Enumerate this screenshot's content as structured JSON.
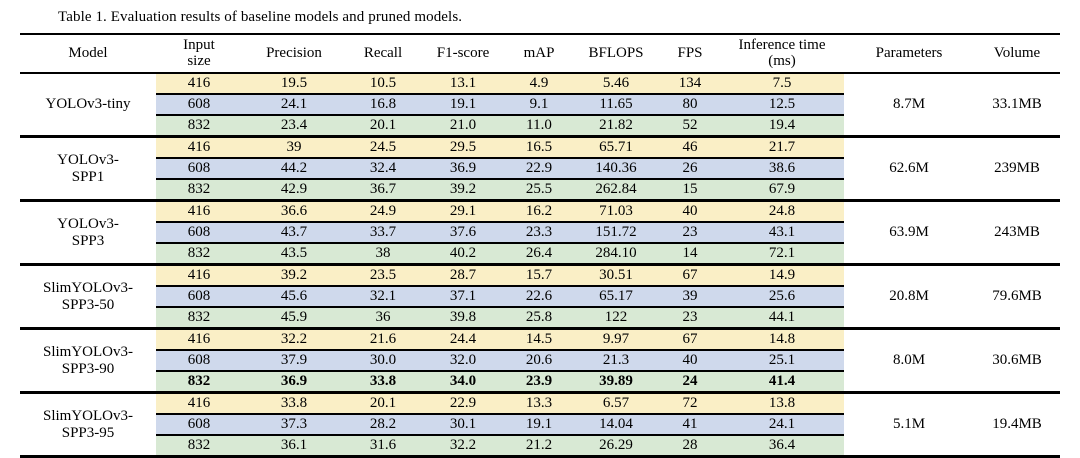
{
  "title": "Table 1. Evaluation results of baseline models and pruned models.",
  "table": {
    "row_colors": {
      "416": "#FAEFC6",
      "608": "#CFD9EC",
      "832": "#D8E9D4"
    },
    "line_color": "#000000",
    "columns": [
      {
        "label": "Model"
      },
      {
        "label": "Input",
        "label2": "size"
      },
      {
        "label": "Precision"
      },
      {
        "label": "Recall"
      },
      {
        "label": "F1-score"
      },
      {
        "label": "mAP"
      },
      {
        "label": "BFLOPS"
      },
      {
        "label": "FPS"
      },
      {
        "label": "Inference time",
        "label2": "(ms)"
      },
      {
        "label": "Parameters"
      },
      {
        "label": "Volume"
      }
    ],
    "groups": [
      {
        "model_lines": [
          "YOLOv3-tiny"
        ],
        "parameters": "8.7M",
        "volume": "33.1MB",
        "rows": [
          {
            "input_size": "416",
            "precision": "19.5",
            "recall": "10.5",
            "f1_score": "13.1",
            "map": "4.9",
            "bflops": "5.46",
            "fps": "134",
            "inference_time_ms": "7.5",
            "bold": false
          },
          {
            "input_size": "608",
            "precision": "24.1",
            "recall": "16.8",
            "f1_score": "19.1",
            "map": "9.1",
            "bflops": "11.65",
            "fps": "80",
            "inference_time_ms": "12.5",
            "bold": false
          },
          {
            "input_size": "832",
            "precision": "23.4",
            "recall": "20.1",
            "f1_score": "21.0",
            "map": "11.0",
            "bflops": "21.82",
            "fps": "52",
            "inference_time_ms": "19.4",
            "bold": false
          }
        ]
      },
      {
        "model_lines": [
          "YOLOv3-",
          "SPP1"
        ],
        "parameters": "62.6M",
        "volume": "239MB",
        "rows": [
          {
            "input_size": "416",
            "precision": "39",
            "recall": "24.5",
            "f1_score": "29.5",
            "map": "16.5",
            "bflops": "65.71",
            "fps": "46",
            "inference_time_ms": "21.7",
            "bold": false
          },
          {
            "input_size": "608",
            "precision": "44.2",
            "recall": "32.4",
            "f1_score": "36.9",
            "map": "22.9",
            "bflops": "140.36",
            "fps": "26",
            "inference_time_ms": "38.6",
            "bold": false
          },
          {
            "input_size": "832",
            "precision": "42.9",
            "recall": "36.7",
            "f1_score": "39.2",
            "map": "25.5",
            "bflops": "262.84",
            "fps": "15",
            "inference_time_ms": "67.9",
            "bold": false
          }
        ]
      },
      {
        "model_lines": [
          "YOLOv3-",
          "SPP3"
        ],
        "parameters": "63.9M",
        "volume": "243MB",
        "rows": [
          {
            "input_size": "416",
            "precision": "36.6",
            "recall": "24.9",
            "f1_score": "29.1",
            "map": "16.2",
            "bflops": "71.03",
            "fps": "40",
            "inference_time_ms": "24.8",
            "bold": false
          },
          {
            "input_size": "608",
            "precision": "43.7",
            "recall": "33.7",
            "f1_score": "37.6",
            "map": "23.3",
            "bflops": "151.72",
            "fps": "23",
            "inference_time_ms": "43.1",
            "bold": false
          },
          {
            "input_size": "832",
            "precision": "43.5",
            "recall": "38",
            "f1_score": "40.2",
            "map": "26.4",
            "bflops": "284.10",
            "fps": "14",
            "inference_time_ms": "72.1",
            "bold": false
          }
        ]
      },
      {
        "model_lines": [
          "SlimYOLOv3-",
          "SPP3-50"
        ],
        "parameters": "20.8M",
        "volume": "79.6MB",
        "rows": [
          {
            "input_size": "416",
            "precision": "39.2",
            "recall": "23.5",
            "f1_score": "28.7",
            "map": "15.7",
            "bflops": "30.51",
            "fps": "67",
            "inference_time_ms": "14.9",
            "bold": false
          },
          {
            "input_size": "608",
            "precision": "45.6",
            "recall": "32.1",
            "f1_score": "37.1",
            "map": "22.6",
            "bflops": "65.17",
            "fps": "39",
            "inference_time_ms": "25.6",
            "bold": false
          },
          {
            "input_size": "832",
            "precision": "45.9",
            "recall": "36",
            "f1_score": "39.8",
            "map": "25.8",
            "bflops": "122",
            "fps": "23",
            "inference_time_ms": "44.1",
            "bold": false
          }
        ]
      },
      {
        "model_lines": [
          "SlimYOLOv3-",
          "SPP3-90"
        ],
        "parameters": "8.0M",
        "volume": "30.6MB",
        "rows": [
          {
            "input_size": "416",
            "precision": "32.2",
            "recall": "21.6",
            "f1_score": "24.4",
            "map": "14.5",
            "bflops": "9.97",
            "fps": "67",
            "inference_time_ms": "14.8",
            "bold": false
          },
          {
            "input_size": "608",
            "precision": "37.9",
            "recall": "30.0",
            "f1_score": "32.0",
            "map": "20.6",
            "bflops": "21.3",
            "fps": "40",
            "inference_time_ms": "25.1",
            "bold": false
          },
          {
            "input_size": "832",
            "precision": "36.9",
            "recall": "33.8",
            "f1_score": "34.0",
            "map": "23.9",
            "bflops": "39.89",
            "fps": "24",
            "inference_time_ms": "41.4",
            "bold": true
          }
        ]
      },
      {
        "model_lines": [
          "SlimYOLOv3-",
          "SPP3-95"
        ],
        "parameters": "5.1M",
        "volume": "19.4MB",
        "rows": [
          {
            "input_size": "416",
            "precision": "33.8",
            "recall": "20.1",
            "f1_score": "22.9",
            "map": "13.3",
            "bflops": "6.57",
            "fps": "72",
            "inference_time_ms": "13.8",
            "bold": false
          },
          {
            "input_size": "608",
            "precision": "37.3",
            "recall": "28.2",
            "f1_score": "30.1",
            "map": "19.1",
            "bflops": "14.04",
            "fps": "41",
            "inference_time_ms": "24.1",
            "bold": false
          },
          {
            "input_size": "832",
            "precision": "36.1",
            "recall": "31.6",
            "f1_score": "32.2",
            "map": "21.2",
            "bflops": "26.29",
            "fps": "28",
            "inference_time_ms": "36.4",
            "bold": false
          }
        ]
      }
    ]
  }
}
